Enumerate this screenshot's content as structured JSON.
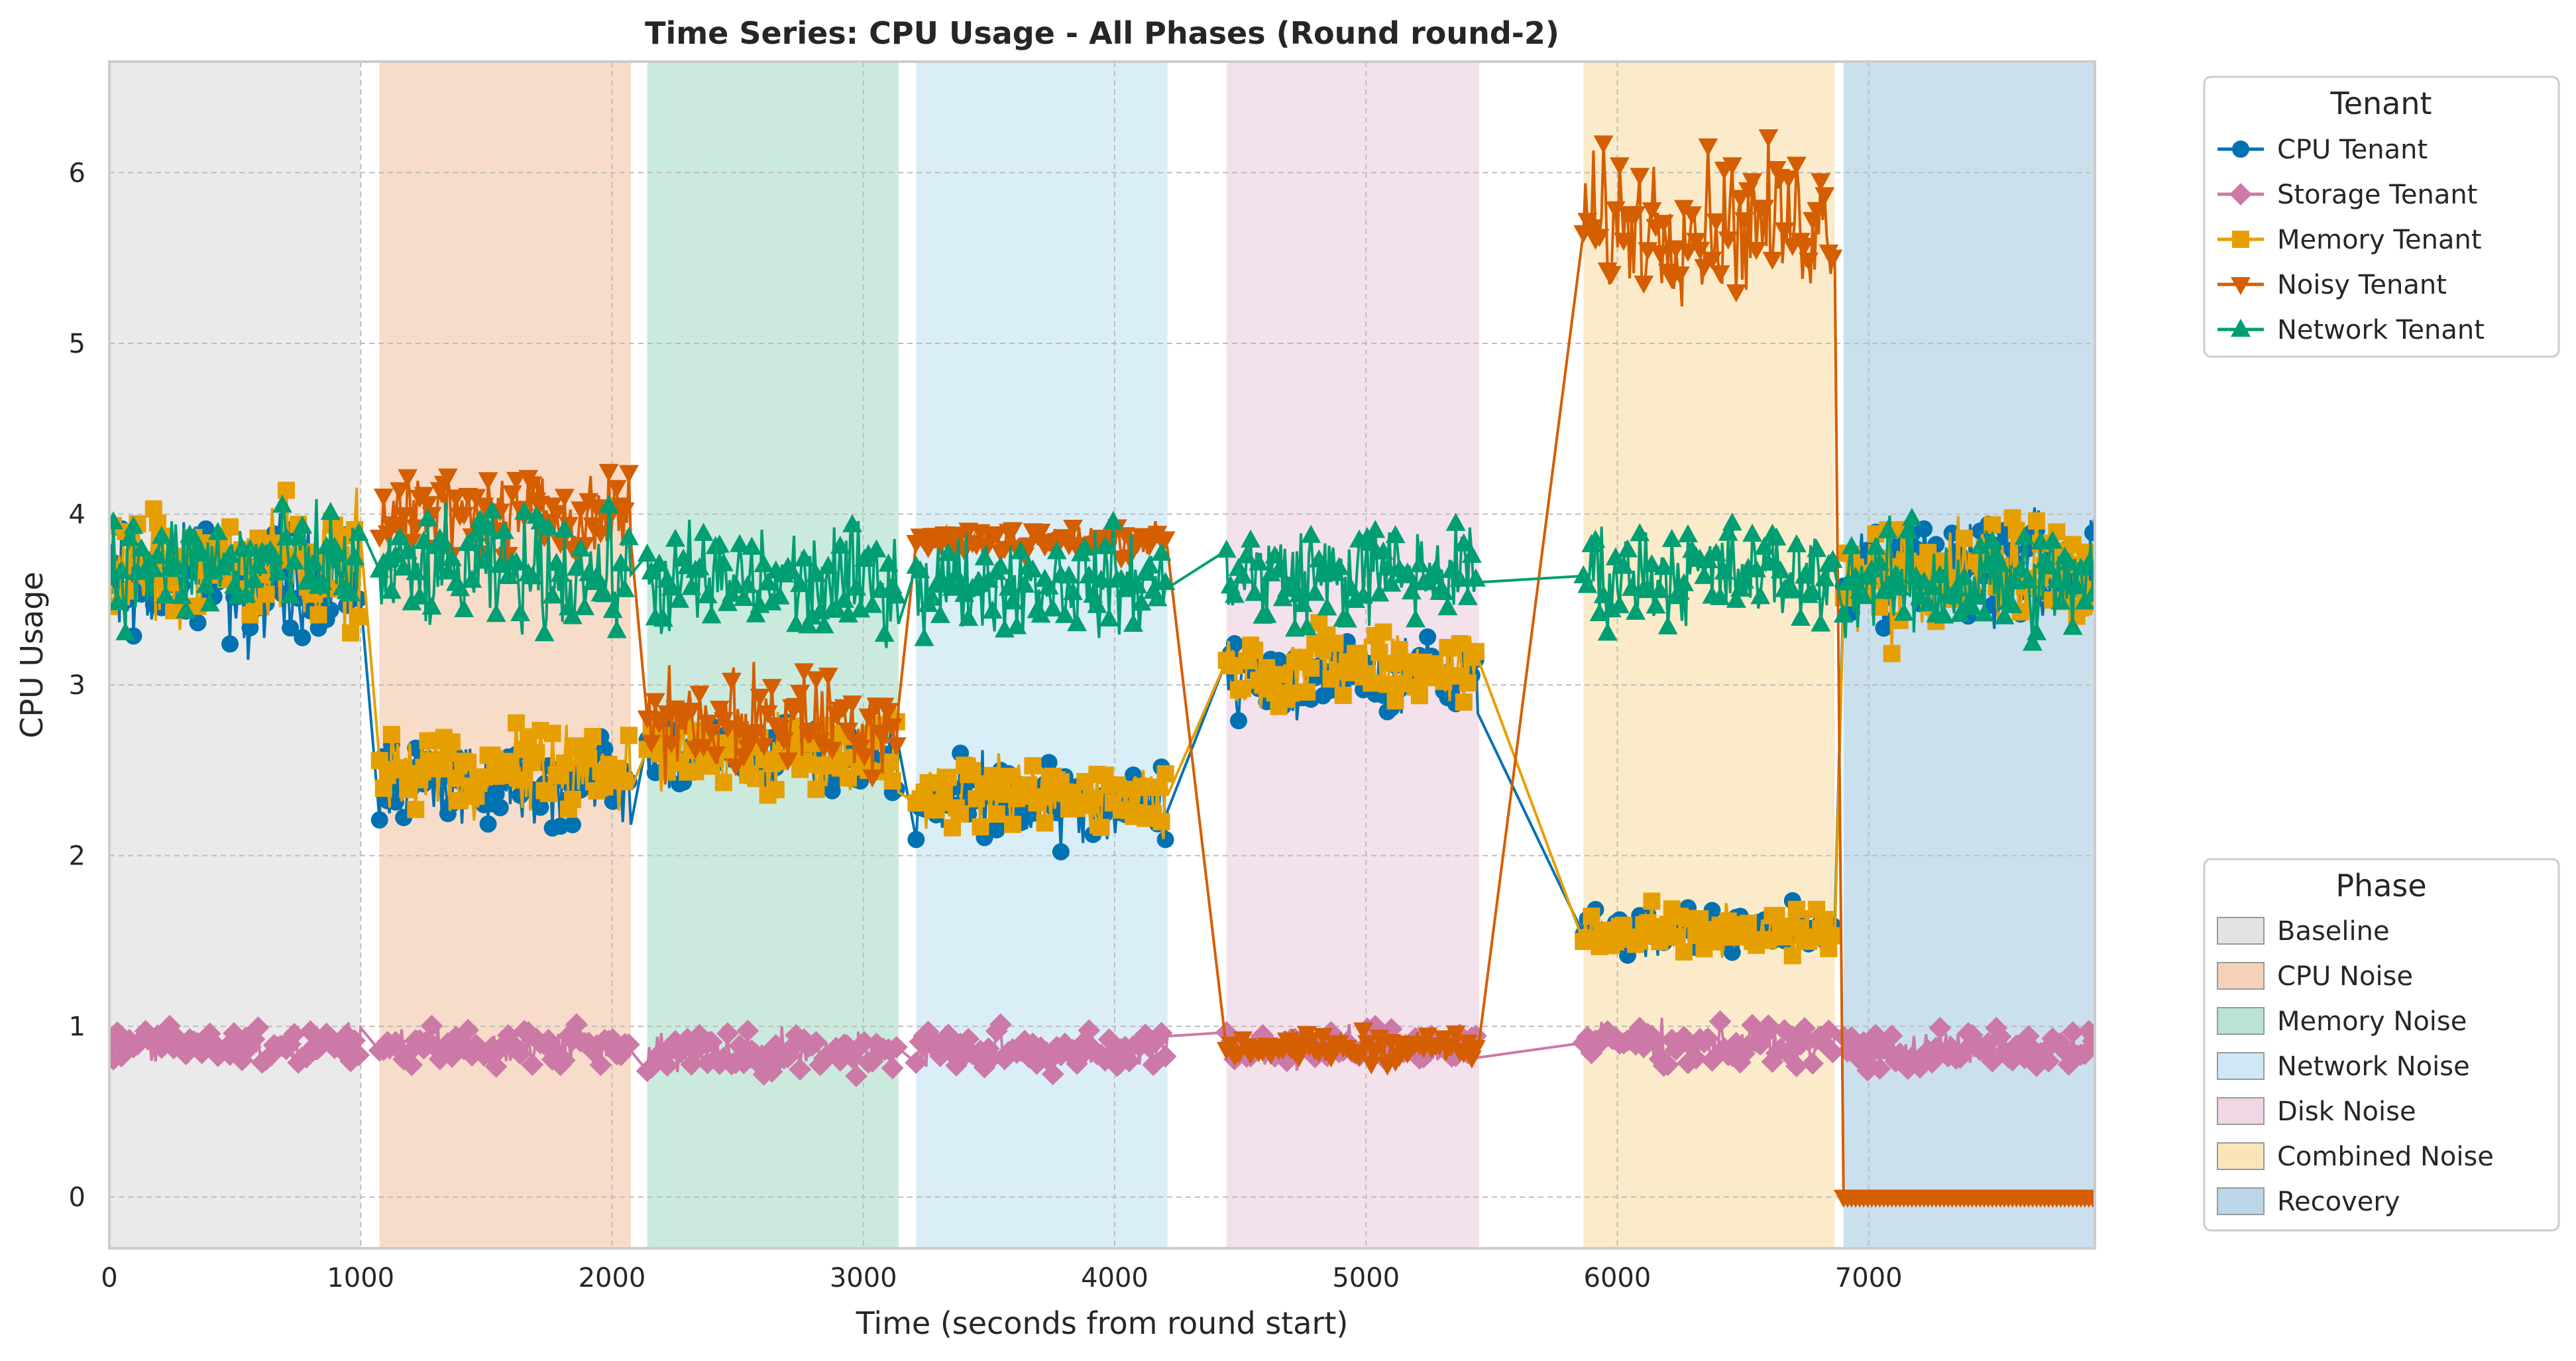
{
  "chart_data": {
    "type": "line",
    "title": "Time Series: CPU Usage - All Phases (Round round-2)",
    "xlabel": "Time (seconds from round start)",
    "ylabel": "CPU Usage",
    "xlim": [
      0,
      7900
    ],
    "ylim": [
      -0.3,
      6.65
    ],
    "x_ticks": [
      0,
      1000,
      2000,
      3000,
      4000,
      5000,
      6000,
      7000
    ],
    "x_tick_labels": [
      "0",
      "1000",
      "2000",
      "3000",
      "4000",
      "5000",
      "6000",
      "7000"
    ],
    "y_ticks": [
      0,
      1,
      2,
      3,
      4,
      5,
      6
    ],
    "y_tick_labels": [
      "0",
      "1",
      "2",
      "3",
      "4",
      "5",
      "6"
    ],
    "grid": true,
    "phases": [
      {
        "name": "Baseline",
        "start": 0,
        "end": 1000,
        "color": "#d9d9d9",
        "alpha": 0.55
      },
      {
        "name": "CPU Noise",
        "start": 1075,
        "end": 2075,
        "color": "#f2c5a5",
        "alpha": 0.6
      },
      {
        "name": "Memory Noise",
        "start": 2140,
        "end": 3140,
        "color": "#a8dcc8",
        "alpha": 0.6
      },
      {
        "name": "Network Noise",
        "start": 3210,
        "end": 4210,
        "color": "#c2e2f2",
        "alpha": 0.6
      },
      {
        "name": "Disk Noise",
        "start": 4445,
        "end": 5450,
        "color": "#ebcde0",
        "alpha": 0.6
      },
      {
        "name": "Combined Noise",
        "start": 5865,
        "end": 6865,
        "color": "#f9e2b4",
        "alpha": 0.7
      },
      {
        "name": "Recovery",
        "start": 6900,
        "end": 7900,
        "color": "#a9cce1",
        "alpha": 0.6
      }
    ],
    "series": [
      {
        "name": "CPU Tenant",
        "color": "#0072b2",
        "marker": "circle",
        "levels": [
          {
            "start": 0,
            "end": 1000,
            "mean": 3.6,
            "noise": 0.28
          },
          {
            "start": 1075,
            "end": 2075,
            "mean": 2.45,
            "noise": 0.22
          },
          {
            "start": 2140,
            "end": 3140,
            "mean": 2.6,
            "noise": 0.18
          },
          {
            "start": 3210,
            "end": 4210,
            "mean": 2.3,
            "noise": 0.2
          },
          {
            "start": 4445,
            "end": 5450,
            "mean": 3.05,
            "noise": 0.18
          },
          {
            "start": 5865,
            "end": 6865,
            "mean": 1.55,
            "noise": 0.12
          },
          {
            "start": 6900,
            "end": 7900,
            "mean": 3.7,
            "noise": 0.28
          }
        ]
      },
      {
        "name": "Storage Tenant",
        "color": "#cc79a7",
        "marker": "diamond",
        "levels": [
          {
            "start": 0,
            "end": 1000,
            "mean": 0.88,
            "noise": 0.1
          },
          {
            "start": 1075,
            "end": 2075,
            "mean": 0.88,
            "noise": 0.1
          },
          {
            "start": 2140,
            "end": 3140,
            "mean": 0.86,
            "noise": 0.1
          },
          {
            "start": 3210,
            "end": 4210,
            "mean": 0.86,
            "noise": 0.1
          },
          {
            "start": 4445,
            "end": 5450,
            "mean": 0.88,
            "noise": 0.1
          },
          {
            "start": 5865,
            "end": 6865,
            "mean": 0.9,
            "noise": 0.1
          },
          {
            "start": 6900,
            "end": 7900,
            "mean": 0.86,
            "noise": 0.1
          }
        ]
      },
      {
        "name": "Memory Tenant",
        "color": "#e69f00",
        "marker": "square",
        "levels": [
          {
            "start": 0,
            "end": 1000,
            "mean": 3.7,
            "noise": 0.3
          },
          {
            "start": 1075,
            "end": 2075,
            "mean": 2.5,
            "noise": 0.22
          },
          {
            "start": 2140,
            "end": 3140,
            "mean": 2.6,
            "noise": 0.2
          },
          {
            "start": 3210,
            "end": 4210,
            "mean": 2.35,
            "noise": 0.18
          },
          {
            "start": 4445,
            "end": 5450,
            "mean": 3.1,
            "noise": 0.2
          },
          {
            "start": 5865,
            "end": 6865,
            "mean": 1.55,
            "noise": 0.12
          },
          {
            "start": 6900,
            "end": 7900,
            "mean": 3.65,
            "noise": 0.3
          }
        ]
      },
      {
        "name": "Noisy Tenant",
        "color": "#d55e00",
        "marker": "triangle-down",
        "levels": [
          {
            "start": 1075,
            "end": 2075,
            "mean": 4.0,
            "noise": 0.2
          },
          {
            "start": 2140,
            "end": 3140,
            "mean": 2.8,
            "noise": 0.25
          },
          {
            "start": 3210,
            "end": 4210,
            "mean": 3.85,
            "noise": 0.08
          },
          {
            "start": 4445,
            "end": 5450,
            "mean": 0.88,
            "noise": 0.08
          },
          {
            "start": 5865,
            "end": 6865,
            "mean": 5.7,
            "noise": 0.35
          },
          {
            "start": 6900,
            "end": 7900,
            "mean": 0.0,
            "noise": 0.0
          }
        ]
      },
      {
        "name": "Network Tenant",
        "color": "#009e73",
        "marker": "triangle-up",
        "levels": [
          {
            "start": 0,
            "end": 1000,
            "mean": 3.7,
            "noise": 0.28
          },
          {
            "start": 1075,
            "end": 2075,
            "mean": 3.65,
            "noise": 0.28
          },
          {
            "start": 2140,
            "end": 3140,
            "mean": 3.6,
            "noise": 0.28
          },
          {
            "start": 3210,
            "end": 4210,
            "mean": 3.6,
            "noise": 0.25
          },
          {
            "start": 4445,
            "end": 5450,
            "mean": 3.65,
            "noise": 0.25
          },
          {
            "start": 5865,
            "end": 6865,
            "mean": 3.65,
            "noise": 0.25
          },
          {
            "start": 6900,
            "end": 7900,
            "mean": 3.6,
            "noise": 0.28
          }
        ]
      }
    ],
    "legend_tenant": {
      "title": "Tenant",
      "placement": "upper-right-outside"
    },
    "legend_phase": {
      "title": "Phase",
      "placement": "lower-right-outside"
    }
  }
}
